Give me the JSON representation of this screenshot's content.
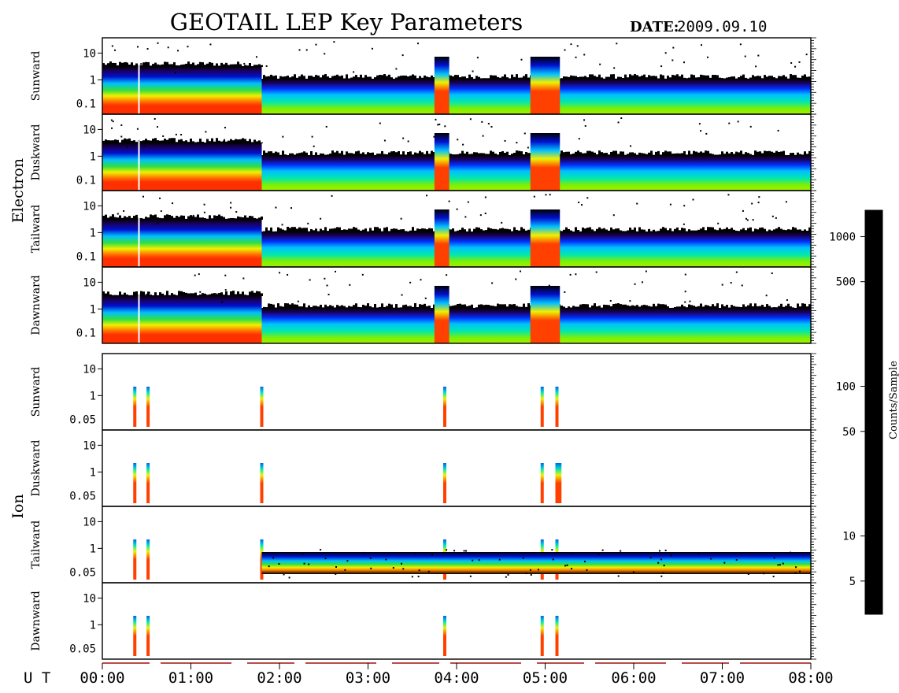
{
  "chart_data": {
    "type": "heatmap",
    "title": "GEOTAIL LEP Key Parameters",
    "date_label": "DATE:",
    "date_value": "2009.09.10",
    "x_axis": {
      "label": "U T",
      "range": [
        "00:00",
        "08:00"
      ],
      "ticks": [
        "00:00",
        "01:00",
        "02:00",
        "03:00",
        "04:00",
        "05:00",
        "06:00",
        "07:00",
        "08:00"
      ]
    },
    "colorbar": {
      "label": "Counts/Sample",
      "scale": "log",
      "range": [
        3,
        1500
      ],
      "ticks": [
        1000,
        500,
        100,
        50,
        10,
        5
      ],
      "colors": [
        "#000000",
        "#1a0060",
        "#0010d0",
        "#0060ff",
        "#00c0ff",
        "#00e8b0",
        "#30e040",
        "#a0f000",
        "#f0f000",
        "#ffa000",
        "#ff4000",
        "#e00000"
      ]
    },
    "groups": [
      {
        "name": "Electron",
        "y_scale": "log",
        "y_ticks": [
          "10",
          "1",
          "0.1"
        ],
        "panels": [
          {
            "name": "Sunward",
            "events": [
              [
                "00:20",
                "00:21"
              ],
              [
                "03:45",
                "03:55"
              ],
              [
                "04:50",
                "05:10"
              ]
            ]
          },
          {
            "name": "Duskward",
            "events": [
              [
                "00:20",
                "00:21"
              ],
              [
                "03:45",
                "03:55"
              ],
              [
                "04:50",
                "05:10"
              ]
            ]
          },
          {
            "name": "Tailward",
            "events": [
              [
                "00:20",
                "00:21"
              ],
              [
                "03:45",
                "03:55"
              ],
              [
                "04:50",
                "05:10"
              ]
            ]
          },
          {
            "name": "Dawnward",
            "events": [
              [
                "00:20",
                "00:21"
              ],
              [
                "03:45",
                "03:55"
              ],
              [
                "04:50",
                "05:10"
              ]
            ]
          }
        ],
        "regime_change_ut": "01:48"
      },
      {
        "name": "Ion",
        "y_scale": "log",
        "y_ticks": [
          "10",
          "1",
          "0.05"
        ],
        "panels": [
          {
            "name": "Sunward",
            "events": [
              "00:22",
              "00:31",
              "01:48",
              "03:52",
              "04:58",
              "05:08"
            ]
          },
          {
            "name": "Duskward",
            "events": [
              "00:22",
              "00:31",
              "01:48",
              "03:52",
              "04:58",
              "05:08",
              "05:10"
            ]
          },
          {
            "name": "Tailward",
            "events": [
              "00:22",
              "00:31",
              "01:48",
              "03:52",
              "04:58",
              "05:08"
            ]
          },
          {
            "name": "Dawnward",
            "events": [
              "00:22",
              "00:31",
              "03:52",
              "04:58",
              "05:08"
            ]
          }
        ]
      }
    ]
  }
}
